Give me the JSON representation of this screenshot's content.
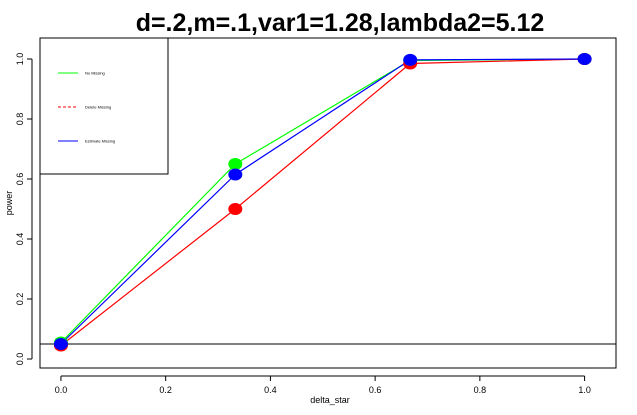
{
  "chart_data": {
    "type": "line",
    "title": "d=.2,m=.1,var1=1.28,lambda2=5.12",
    "xlabel": "delta_star",
    "ylabel": "power",
    "x": [
      0,
      0.333,
      0.667,
      1.0
    ],
    "xlim": [
      -0.04,
      1.06
    ],
    "ylim": [
      -0.03,
      1.07
    ],
    "xticks": [
      "0.0",
      "0.2",
      "0.4",
      "0.6",
      "0.8",
      "1.0"
    ],
    "yticks": [
      "0.0",
      "0.2",
      "0.4",
      "0.6",
      "0.8",
      "1.0"
    ],
    "reference_line_y": 0.05,
    "legend_position": "top-left",
    "series": [
      {
        "name": "No Missing",
        "color": "#00ff00",
        "line_style": "solid",
        "values": [
          0.055,
          0.65,
          0.995,
          1.0
        ]
      },
      {
        "name": "Delete Missing",
        "color": "#ff0000",
        "line_style": "dashed",
        "values": [
          0.045,
          0.5,
          0.985,
          1.0
        ]
      },
      {
        "name": "Estimate Missing",
        "color": "#0000ff",
        "line_style": "solid",
        "values": [
          0.05,
          0.615,
          0.997,
          1.0
        ]
      }
    ],
    "grid": false
  }
}
